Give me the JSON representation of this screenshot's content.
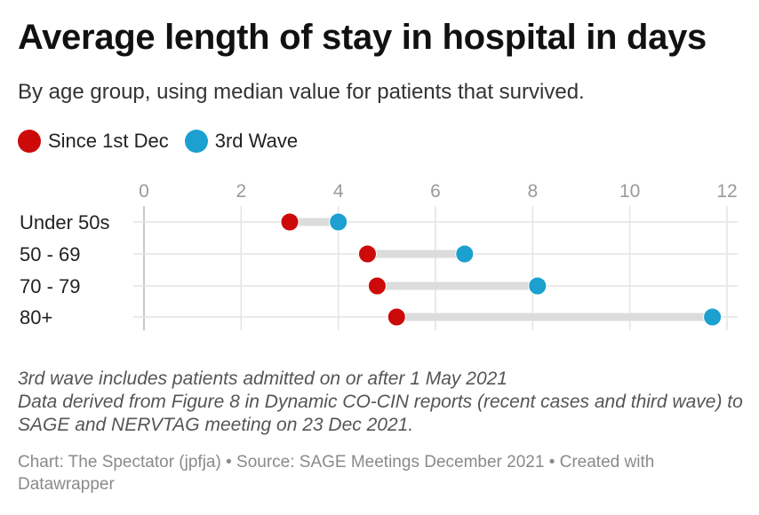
{
  "title": "Average length of stay in hospital in days",
  "subtitle": "By age group, using median value for patients that survived.",
  "legend": [
    {
      "label": "Since 1st Dec",
      "color": "#cc0a0a"
    },
    {
      "label": "3rd Wave",
      "color": "#1ba0cf"
    }
  ],
  "chart_data": {
    "type": "dot-range",
    "title": "Average length of stay in hospital in days",
    "xlim": [
      0,
      12
    ],
    "x_ticks": [
      0,
      2,
      4,
      6,
      8,
      10,
      12
    ],
    "grid": true,
    "categories": [
      "Under 50s",
      "50 - 69",
      "70 - 79",
      "80+"
    ],
    "series": [
      {
        "name": "Since 1st Dec",
        "color": "#cc0a0a",
        "values": [
          3.0,
          4.6,
          4.8,
          5.2
        ]
      },
      {
        "name": "3rd Wave",
        "color": "#1ba0cf",
        "values": [
          4.0,
          6.6,
          8.1,
          11.7
        ]
      }
    ]
  },
  "notes": {
    "line1": "3rd wave includes patients admitted on or after 1 May 2021",
    "line2": "Data derived from Figure 8 in Dynamic CO-CIN reports (recent cases and third wave) to SAGE and NERVTAG meeting on 23 Dec 2021."
  },
  "credit": "Chart: The Spectator (jpfja) • Source: SAGE Meetings December 2021 • Created with Datawrapper"
}
